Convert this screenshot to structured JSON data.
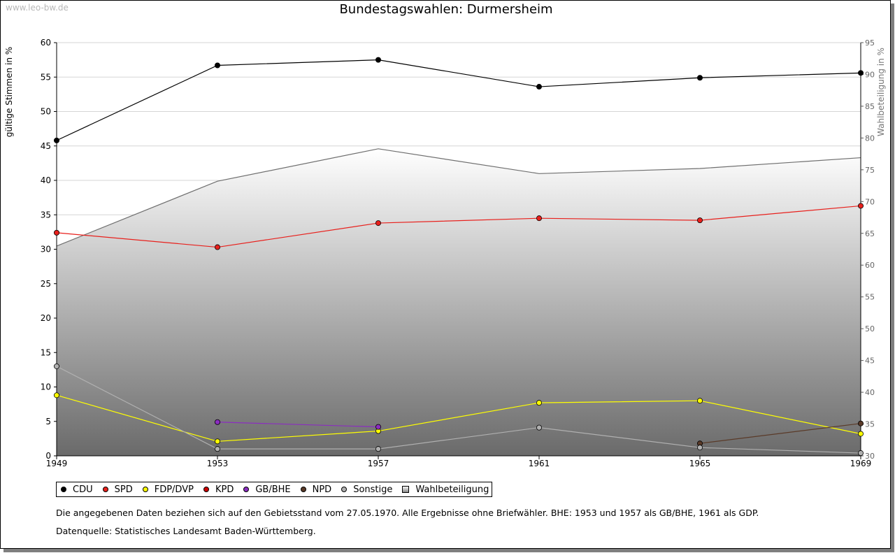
{
  "watermark": "www.leo-bw.de",
  "chart_data": {
    "type": "line",
    "title": "Bundestagswahlen: Durmersheim",
    "ylabel": "gültige Stimmen in %",
    "y2label": "Wahlbeteiligung in %",
    "categories": [
      "1949",
      "1953",
      "1957",
      "1961",
      "1965",
      "1969"
    ],
    "ylim": [
      0,
      60
    ],
    "yticks": [
      "0",
      "5",
      "10",
      "15",
      "20",
      "25",
      "30",
      "35",
      "40",
      "45",
      "50",
      "55",
      "60"
    ],
    "y2lim": [
      30,
      95
    ],
    "y2ticks": [
      "30",
      "35",
      "40",
      "45",
      "50",
      "55",
      "60",
      "65",
      "70",
      "75",
      "80",
      "85",
      "90",
      "95"
    ],
    "grid": true,
    "series": [
      {
        "name": "CDU",
        "color": "#000000",
        "values": [
          45.8,
          56.7,
          57.5,
          53.6,
          54.9,
          55.6
        ]
      },
      {
        "name": "SPD",
        "color": "#e8201c",
        "values": [
          32.4,
          30.3,
          33.8,
          34.5,
          34.2,
          36.3
        ]
      },
      {
        "name": "FDP/DVP",
        "color": "#ffff00",
        "values": [
          8.8,
          2.1,
          3.6,
          7.7,
          8.0,
          3.2
        ]
      },
      {
        "name": "KPD",
        "color": "#cc0000",
        "values": [
          null,
          null,
          null,
          null,
          null,
          null
        ]
      },
      {
        "name": "GB/BHE",
        "color": "#8b2dc0",
        "values": [
          null,
          4.9,
          4.2,
          null,
          null,
          null
        ]
      },
      {
        "name": "NPD",
        "color": "#5a3a28",
        "values": [
          null,
          null,
          null,
          null,
          1.8,
          4.7
        ]
      },
      {
        "name": "Sonstige",
        "color": "#b0b0b0",
        "values": [
          13.0,
          1.0,
          1.0,
          4.1,
          1.2,
          0.4
        ]
      }
    ],
    "area_series": {
      "name": "Wahlbeteiligung",
      "axis": "right",
      "values": [
        63.0,
        73.2,
        78.3,
        74.4,
        75.2,
        76.9
      ]
    },
    "legend": [
      "CDU",
      "SPD",
      "FDP/DVP",
      "KPD",
      "GB/BHE",
      "NPD",
      "Sonstige",
      "Wahlbeteiligung"
    ],
    "legend_position": "bottom-left"
  },
  "note": "Die angegebenen Daten beziehen sich auf den Gebietsstand vom 27.05.1970. Alle Ergebnisse ohne Briefwähler. BHE: 1953 und 1957 als GB/BHE, 1961 als GDP.",
  "source": "Datenquelle: Statistisches Landesamt Baden-Württemberg."
}
